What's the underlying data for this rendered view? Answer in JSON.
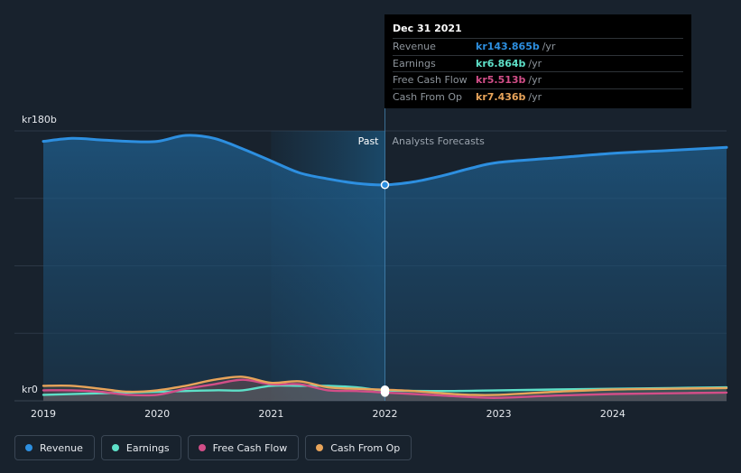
{
  "chart_data": {
    "type": "line",
    "y_unit_label_top": "kr180b",
    "y_unit_label_bottom": "kr0",
    "ylim": [
      0,
      180
    ],
    "xlim": [
      2019.0,
      2025.0
    ],
    "x_ticks": [
      "2019",
      "2020",
      "2021",
      "2022",
      "2023",
      "2024"
    ],
    "past_label": "Past",
    "forecast_label": "Analysts Forecasts",
    "divider_x": 2022.0,
    "series": [
      {
        "name": "Revenue",
        "color": "#2d8fe0",
        "x": [
          2019.0,
          2019.25,
          2019.5,
          2019.75,
          2020.0,
          2020.25,
          2020.5,
          2020.75,
          2021.0,
          2021.25,
          2021.5,
          2021.75,
          2022.0,
          2022.25,
          2022.5,
          2022.75,
          2023.0,
          2023.5,
          2024.0,
          2024.5,
          2025.0
        ],
        "values": [
          173,
          175,
          174,
          173,
          173,
          177,
          175,
          168,
          160,
          152,
          148,
          145,
          144,
          146,
          150,
          155,
          159,
          162,
          165,
          167,
          169
        ]
      },
      {
        "name": "Earnings",
        "color": "#5ee0c8",
        "x": [
          2019.0,
          2019.5,
          2020.0,
          2020.5,
          2020.75,
          2021.0,
          2021.25,
          2021.5,
          2021.75,
          2022.0,
          2022.5,
          2023.0,
          2023.5,
          2024.0,
          2024.5,
          2025.0
        ],
        "values": [
          4,
          5,
          6,
          7,
          7,
          10,
          10,
          10,
          9,
          6.9,
          6.5,
          7,
          7.5,
          8,
          8.5,
          9
        ]
      },
      {
        "name": "Free Cash Flow",
        "color": "#d24e88",
        "x": [
          2019.0,
          2019.25,
          2019.5,
          2019.75,
          2020.0,
          2020.25,
          2020.5,
          2020.75,
          2021.0,
          2021.25,
          2021.5,
          2021.75,
          2022.0,
          2022.25,
          2022.5,
          2022.75,
          2023.0,
          2023.5,
          2024.0,
          2024.5,
          2025.0
        ],
        "values": [
          7,
          7,
          6,
          4,
          4,
          8,
          11,
          14,
          11,
          11,
          7,
          6.5,
          5.5,
          4.5,
          3.5,
          2.5,
          2,
          3.5,
          4.5,
          5,
          5.5
        ]
      },
      {
        "name": "Cash From Op",
        "color": "#e8a45a",
        "x": [
          2019.0,
          2019.25,
          2019.5,
          2019.75,
          2020.0,
          2020.25,
          2020.5,
          2020.75,
          2021.0,
          2021.25,
          2021.5,
          2021.75,
          2022.0,
          2022.25,
          2022.5,
          2022.75,
          2023.0,
          2023.5,
          2024.0,
          2024.5,
          2025.0
        ],
        "values": [
          10,
          10,
          8,
          6,
          7,
          10,
          14,
          16,
          12,
          13,
          9,
          8,
          7.4,
          6.5,
          5,
          4,
          4,
          6,
          7.5,
          8,
          8.5
        ]
      }
    ]
  },
  "tooltip": {
    "date": "Dec 31 2021",
    "rows": [
      {
        "label": "Revenue",
        "value": "kr143.865b",
        "unit": "/yr",
        "color": "#2d8fe0"
      },
      {
        "label": "Earnings",
        "value": "kr6.864b",
        "unit": "/yr",
        "color": "#5ee0c8"
      },
      {
        "label": "Free Cash Flow",
        "value": "kr5.513b",
        "unit": "/yr",
        "color": "#d24e88"
      },
      {
        "label": "Cash From Op",
        "value": "kr7.436b",
        "unit": "/yr",
        "color": "#e8a45a"
      }
    ]
  },
  "legend": [
    {
      "label": "Revenue",
      "color": "#2d8fe0"
    },
    {
      "label": "Earnings",
      "color": "#5ee0c8"
    },
    {
      "label": "Free Cash Flow",
      "color": "#d24e88"
    },
    {
      "label": "Cash From Op",
      "color": "#e8a45a"
    }
  ]
}
